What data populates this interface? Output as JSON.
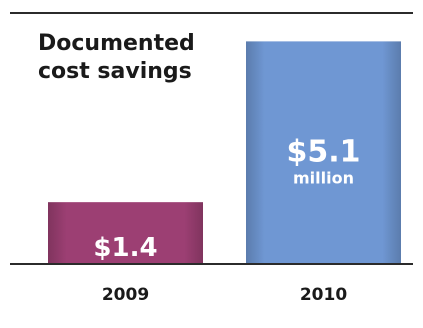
{
  "chart_data": {
    "type": "bar",
    "title_lines": [
      "Documented",
      "cost savings"
    ],
    "categories": [
      "2009",
      "2010"
    ],
    "values": [
      1.4,
      5.1
    ],
    "value_labels": [
      "$1.4",
      "$5.1"
    ],
    "unit_label": "million",
    "bar_colors": [
      "#9c3f73",
      "#6f97d3"
    ],
    "axis_color": "#2b2b2b",
    "xlabel": "",
    "ylabel": "",
    "ylim": [
      0,
      5.5
    ],
    "grid": false,
    "legend": "none"
  }
}
